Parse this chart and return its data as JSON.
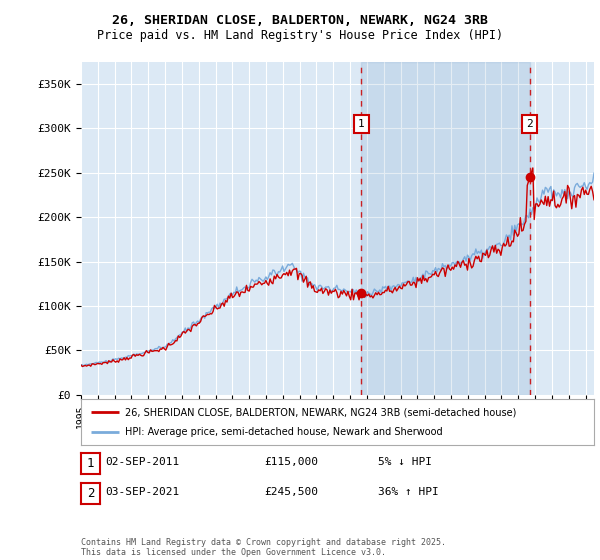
{
  "title_line1": "26, SHERIDAN CLOSE, BALDERTON, NEWARK, NG24 3RB",
  "title_line2": "Price paid vs. HM Land Registry's House Price Index (HPI)",
  "ylabel_ticks": [
    "£0",
    "£50K",
    "£100K",
    "£150K",
    "£200K",
    "£250K",
    "£300K",
    "£350K"
  ],
  "ytick_values": [
    0,
    50000,
    100000,
    150000,
    200000,
    250000,
    300000,
    350000
  ],
  "ylim": [
    0,
    375000
  ],
  "xlim_start": 1995.0,
  "xlim_end": 2025.5,
  "background_color": "#dce9f5",
  "grid_color": "#ffffff",
  "hpi_color": "#7aabdb",
  "price_color": "#cc0000",
  "vline_color": "#cc0000",
  "shade_color": "#dce9f5",
  "transaction1_year": 2011.67,
  "transaction1_price": 115000,
  "transaction1_label": "1",
  "transaction2_year": 2021.67,
  "transaction2_price": 245500,
  "transaction2_label": "2",
  "legend_label1": "26, SHERIDAN CLOSE, BALDERTON, NEWARK, NG24 3RB (semi-detached house)",
  "legend_label2": "HPI: Average price, semi-detached house, Newark and Sherwood",
  "annotation1_date": "02-SEP-2011",
  "annotation1_price": "£115,000",
  "annotation1_pct": "5% ↓ HPI",
  "annotation2_date": "03-SEP-2021",
  "annotation2_price": "£245,500",
  "annotation2_pct": "36% ↑ HPI",
  "footer": "Contains HM Land Registry data © Crown copyright and database right 2025.\nThis data is licensed under the Open Government Licence v3.0.",
  "xtick_years": [
    1995,
    1996,
    1997,
    1998,
    1999,
    2000,
    2001,
    2002,
    2003,
    2004,
    2005,
    2006,
    2007,
    2008,
    2009,
    2010,
    2011,
    2012,
    2013,
    2014,
    2015,
    2016,
    2017,
    2018,
    2019,
    2020,
    2021,
    2022,
    2023,
    2024,
    2025
  ]
}
